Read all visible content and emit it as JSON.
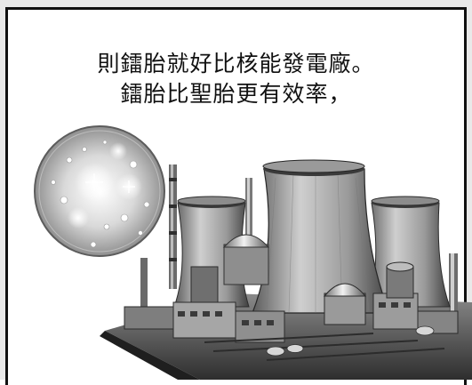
{
  "caption": {
    "line1": "則鐳胎就好比核能發電廠。",
    "line2": "鐳胎比聖胎更有效率，"
  },
  "colors": {
    "ink": "#111111",
    "paper": "#ffffff",
    "background": "#e9e9e9"
  },
  "icons": [
    "glowing-orb-icon",
    "nuclear-power-plant-illustration"
  ]
}
